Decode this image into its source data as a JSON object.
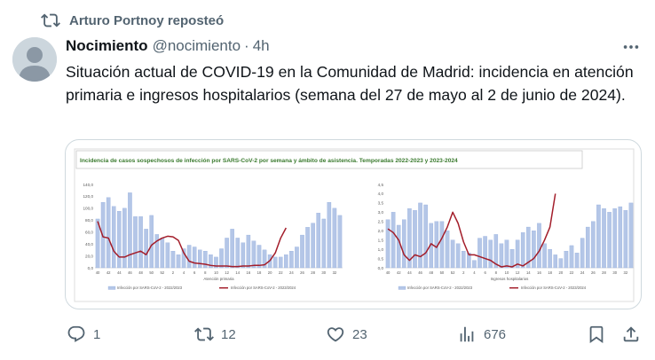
{
  "repost": {
    "text": "Arturo Portnoy reposteó"
  },
  "author": {
    "name": "Nocimiento",
    "handle": "@nocimiento",
    "separator": "·",
    "time": "4h"
  },
  "tweet": {
    "text": "Situación actual de COVID-19 en la Comunidad de Madrid: incidencia en atención primaria e ingresos hospitalarios (semana del 27 de mayo al 2 de junio de 2024)."
  },
  "media": {
    "title": "Incidencia de casos sospechosos de infección por SARS-CoV-2 por semana y ámbito de asistencia. Temporadas 2022-2023 y 2023-2024",
    "colors": {
      "bar": "#b4c6e7",
      "bar_edge": "#8faadc",
      "line": "#a31d2a",
      "title": "#3a7a2e"
    }
  },
  "chart_data": [
    {
      "type": "bar",
      "xlabel": "Atención primaria",
      "ylim": [
        0,
        140
      ],
      "yticks": [
        "0,0",
        "20,0",
        "40,0",
        "60,0",
        "80,0",
        "100,0",
        "120,0",
        "140,0"
      ],
      "xticks": [
        "40",
        "42",
        "44",
        "46",
        "48",
        "50",
        "52",
        "2",
        "4",
        "6",
        "8",
        "10",
        "12",
        "14",
        "16",
        "18",
        "20",
        "22",
        "24",
        "26",
        "28",
        "30",
        "32",
        "34",
        "36",
        "38"
      ],
      "series": [
        {
          "name": "Infección por SARS-CoV-2 - 2022/2023",
          "kind": "bar",
          "values": [
            82,
            110,
            118,
            103,
            95,
            100,
            126,
            86,
            86,
            65,
            88,
            56,
            50,
            42,
            28,
            22,
            32,
            38,
            35,
            30,
            28,
            22,
            18,
            32,
            50,
            65,
            50,
            42,
            55,
            45,
            38,
            30,
            22,
            18,
            18,
            22,
            28,
            35,
            55,
            68,
            75,
            92,
            82,
            110,
            100,
            88
          ]
        },
        {
          "name": "Infección por SARS-CoV-2 - 2023/2024",
          "kind": "line",
          "values": [
            78,
            52,
            50,
            28,
            18,
            18,
            22,
            25,
            28,
            22,
            38,
            45,
            50,
            53,
            52,
            46,
            25,
            11,
            8,
            7,
            6,
            4,
            3,
            3,
            3,
            2,
            2,
            3,
            3,
            4,
            4,
            5,
            12,
            25,
            50,
            67
          ]
        }
      ],
      "legend_placement": "bottom"
    },
    {
      "type": "bar",
      "xlabel": "Ingresos hospitalarios",
      "ylim": [
        0,
        4.5
      ],
      "yticks": [
        "0,0",
        "0,5",
        "1,0",
        "1,5",
        "2,0",
        "2,5",
        "3,0",
        "3,5",
        "4,0",
        "4,5"
      ],
      "xticks": [
        "40",
        "42",
        "44",
        "46",
        "48",
        "50",
        "52",
        "2",
        "4",
        "6",
        "8",
        "10",
        "12",
        "14",
        "16",
        "18",
        "20",
        "22",
        "24",
        "26",
        "28",
        "30",
        "32",
        "34",
        "36",
        "38"
      ],
      "series": [
        {
          "name": "Infección por SARS-CoV-2 - 2022/2023",
          "kind": "bar",
          "values": [
            2.6,
            3.0,
            2.3,
            2.6,
            3.2,
            3.1,
            3.5,
            3.4,
            2.4,
            2.5,
            2.5,
            2.0,
            1.5,
            1.3,
            0.9,
            0.8,
            0.4,
            1.6,
            1.7,
            1.5,
            1.8,
            1.3,
            1.5,
            1.0,
            1.5,
            1.9,
            2.2,
            2.0,
            2.4,
            1.3,
            1.0,
            0.7,
            0.5,
            0.9,
            1.2,
            0.8,
            1.6,
            2.2,
            2.5,
            3.4,
            3.2,
            3.0,
            3.2,
            3.3,
            3.1,
            3.5
          ]
        },
        {
          "name": "Infección por SARS-CoV-2 - 2023/2024",
          "kind": "line",
          "values": [
            2.1,
            1.9,
            1.5,
            0.7,
            0.4,
            0.7,
            0.6,
            0.8,
            1.3,
            1.1,
            1.6,
            2.2,
            3.0,
            2.4,
            1.4,
            0.7,
            0.7,
            0.6,
            0.5,
            0.4,
            0.2,
            0.05,
            0.1,
            0.05,
            0.2,
            0.1,
            0.3,
            0.5,
            0.9,
            1.5,
            2.2,
            4.0
          ]
        }
      ],
      "legend_placement": "bottom"
    }
  ],
  "actions": {
    "replies": "1",
    "reposts": "12",
    "likes": "23",
    "views": "676"
  }
}
